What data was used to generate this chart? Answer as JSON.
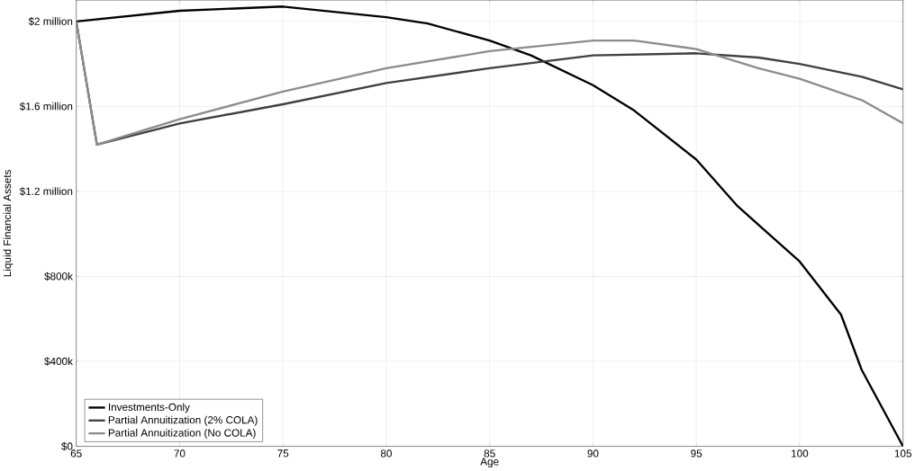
{
  "chart_data": {
    "type": "line",
    "xlabel": "Age",
    "ylabel": "Liquid Financial Assets",
    "xlim": [
      65,
      105
    ],
    "xticks": [
      65,
      70,
      75,
      80,
      85,
      90,
      95,
      100,
      105
    ],
    "ylim": [
      0,
      2100000
    ],
    "yticks": [
      {
        "value": 0,
        "label": "$0"
      },
      {
        "value": 400000,
        "label": "$400k"
      },
      {
        "value": 800000,
        "label": "$800k"
      },
      {
        "value": 1200000,
        "label": "$1.2 million"
      },
      {
        "value": 1600000,
        "label": "$1.6 million"
      },
      {
        "value": 2000000,
        "label": "$2 million"
      }
    ],
    "grid": true,
    "legend": "bottom left",
    "line_style": "solid",
    "series": [
      {
        "name": "Investments-Only",
        "color": "#000000",
        "x": [
          65,
          70,
          75,
          80,
          82,
          85,
          87,
          90,
          92,
          95,
          97,
          100,
          102,
          103,
          104,
          105
        ],
        "values": [
          2000000,
          2050000,
          2070000,
          2020000,
          1990000,
          1910000,
          1840000,
          1700000,
          1580000,
          1350000,
          1130000,
          870000,
          620000,
          360000,
          180000,
          0
        ]
      },
      {
        "name": "Partial Annuitization (2% COLA)",
        "color": "#404040",
        "x": [
          65,
          66,
          70,
          75,
          80,
          85,
          90,
          95,
          98,
          100,
          103,
          105
        ],
        "values": [
          2000000,
          1420000,
          1520000,
          1610000,
          1710000,
          1780000,
          1840000,
          1850000,
          1830000,
          1800000,
          1740000,
          1680000
        ]
      },
      {
        "name": "Partial Annuitization (No COLA)",
        "color": "#8c8c8c",
        "x": [
          65,
          66,
          70,
          75,
          80,
          85,
          90,
          92,
          95,
          98,
          100,
          103,
          105
        ],
        "values": [
          2000000,
          1420000,
          1540000,
          1670000,
          1780000,
          1860000,
          1910000,
          1910000,
          1870000,
          1780000,
          1730000,
          1630000,
          1520000
        ]
      }
    ]
  }
}
